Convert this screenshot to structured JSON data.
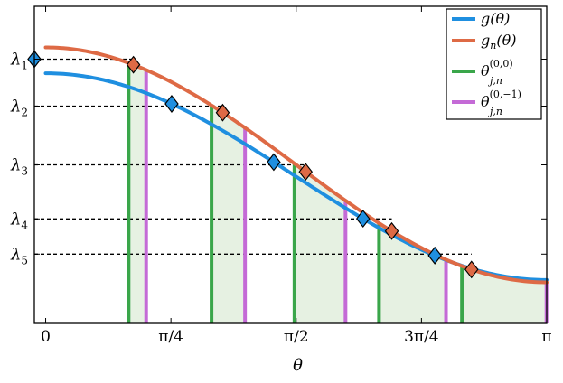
{
  "chart_data": {
    "type": "line",
    "xlabel": "θ",
    "ylabel": "",
    "xlim": [
      -0.071,
      3.1416
    ],
    "ylim": [
      -0.175,
      1.175
    ],
    "x_ticks": [
      {
        "value": 0,
        "label": "0"
      },
      {
        "value": 0.7854,
        "label": "π/4"
      },
      {
        "value": 1.5708,
        "label": "π/2"
      },
      {
        "value": 2.3562,
        "label": "3π/4"
      },
      {
        "value": 3.1416,
        "label": "π"
      }
    ],
    "y_levels": [
      {
        "name": "λ",
        "sub": "1",
        "value": 0.95
      },
      {
        "name": "λ",
        "sub": "2",
        "value": 0.75
      },
      {
        "name": "λ",
        "sub": "3",
        "value": 0.5
      },
      {
        "name": "λ",
        "sub": "4",
        "value": 0.27
      },
      {
        "name": "λ",
        "sub": "5",
        "value": 0.12
      }
    ],
    "legend": {
      "position": "top-right",
      "entries": [
        {
          "base": "g",
          "sub": "",
          "sup": "",
          "args": "(θ)",
          "series": "g",
          "color": "#1f8fe0"
        },
        {
          "base": "g",
          "sub": "n",
          "sup": "",
          "args": "(θ)",
          "series": "gn",
          "color": "#de6a45"
        },
        {
          "base": "θ",
          "sub": "j,n",
          "sup": "(0,0)",
          "args": "",
          "series": "theta00",
          "color": "#3aa64a"
        },
        {
          "base": "θ",
          "sub": "j,n",
          "sup": "(0,−1)",
          "args": "",
          "series": "theta01",
          "color": "#c46ad6"
        }
      ]
    },
    "series": [
      {
        "id": "g",
        "color": "#1f8fe0",
        "function": "a+b*cos(x)",
        "a": 0.45,
        "b": 0.44
      },
      {
        "id": "gn",
        "color": "#de6a45",
        "function": "a+b*cos(x)",
        "a": 0.5,
        "b": 0.5
      },
      {
        "id": "theta00",
        "color": "#3aa64a",
        "x": [
          0.52,
          1.04,
          1.56,
          2.09,
          2.61
        ]
      },
      {
        "id": "theta01",
        "color": "#c46ad6",
        "x": [
          0.63,
          1.25,
          1.88,
          2.51,
          3.14
        ]
      }
    ],
    "markers": [
      {
        "series": "g",
        "x": [
          -0.071,
          0.79,
          1.43,
          1.99,
          2.44
        ]
      },
      {
        "series": "gn",
        "x": [
          0.55,
          1.11,
          1.63,
          2.17,
          2.67
        ]
      }
    ],
    "shading": {
      "color": "#e6f1e2",
      "between": [
        "gn",
        "theta00"
      ]
    }
  }
}
